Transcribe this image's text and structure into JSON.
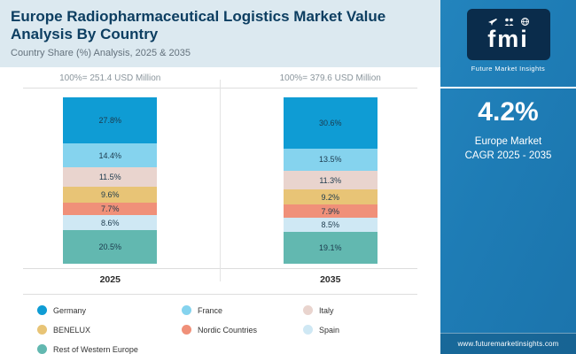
{
  "header": {
    "title": "Europe Radiopharmaceutical Logistics Market Value Analysis By Country",
    "subtitle": "Country Share (%) Analysis, 2025 & 2035"
  },
  "chart_data": {
    "type": "bar",
    "stacked": true,
    "categories": [
      "2025",
      "2035"
    ],
    "totals": [
      "100%= 251.4 USD Million",
      "100%= 379.6 USD Million"
    ],
    "series": [
      {
        "name": "Germany",
        "values": [
          27.8,
          30.6
        ],
        "color": "#0f9cd4"
      },
      {
        "name": "France",
        "values": [
          14.4,
          13.5
        ],
        "color": "#85d3ee"
      },
      {
        "name": "Italy",
        "values": [
          11.5,
          11.3
        ],
        "color": "#e9d4ce"
      },
      {
        "name": "BENELUX",
        "values": [
          9.6,
          9.2
        ],
        "color": "#e8c476"
      },
      {
        "name": "Nordic Countries",
        "values": [
          7.7,
          7.9
        ],
        "color": "#f09079"
      },
      {
        "name": "Spain",
        "values": [
          8.6,
          8.5
        ],
        "color": "#cfe8f4"
      },
      {
        "name": "Rest of Western Europe",
        "values": [
          20.5,
          19.1
        ],
        "color": "#62b8b0"
      }
    ],
    "legend_position": "bottom",
    "value_suffix": "%"
  },
  "sidebar": {
    "logo_text": "fmi",
    "logo_subtext": "Future Market Insights",
    "stat_value": "4.2%",
    "stat_line1": "Europe Market",
    "stat_line2": "CAGR 2025 - 2035",
    "footer": "www.futuremarketinsights.com",
    "colors": {
      "panel": "#1e7cb5",
      "logo_bg": "#0a2c4b",
      "header_band": "#dce9f0",
      "title_text": "#0d3e61"
    }
  }
}
